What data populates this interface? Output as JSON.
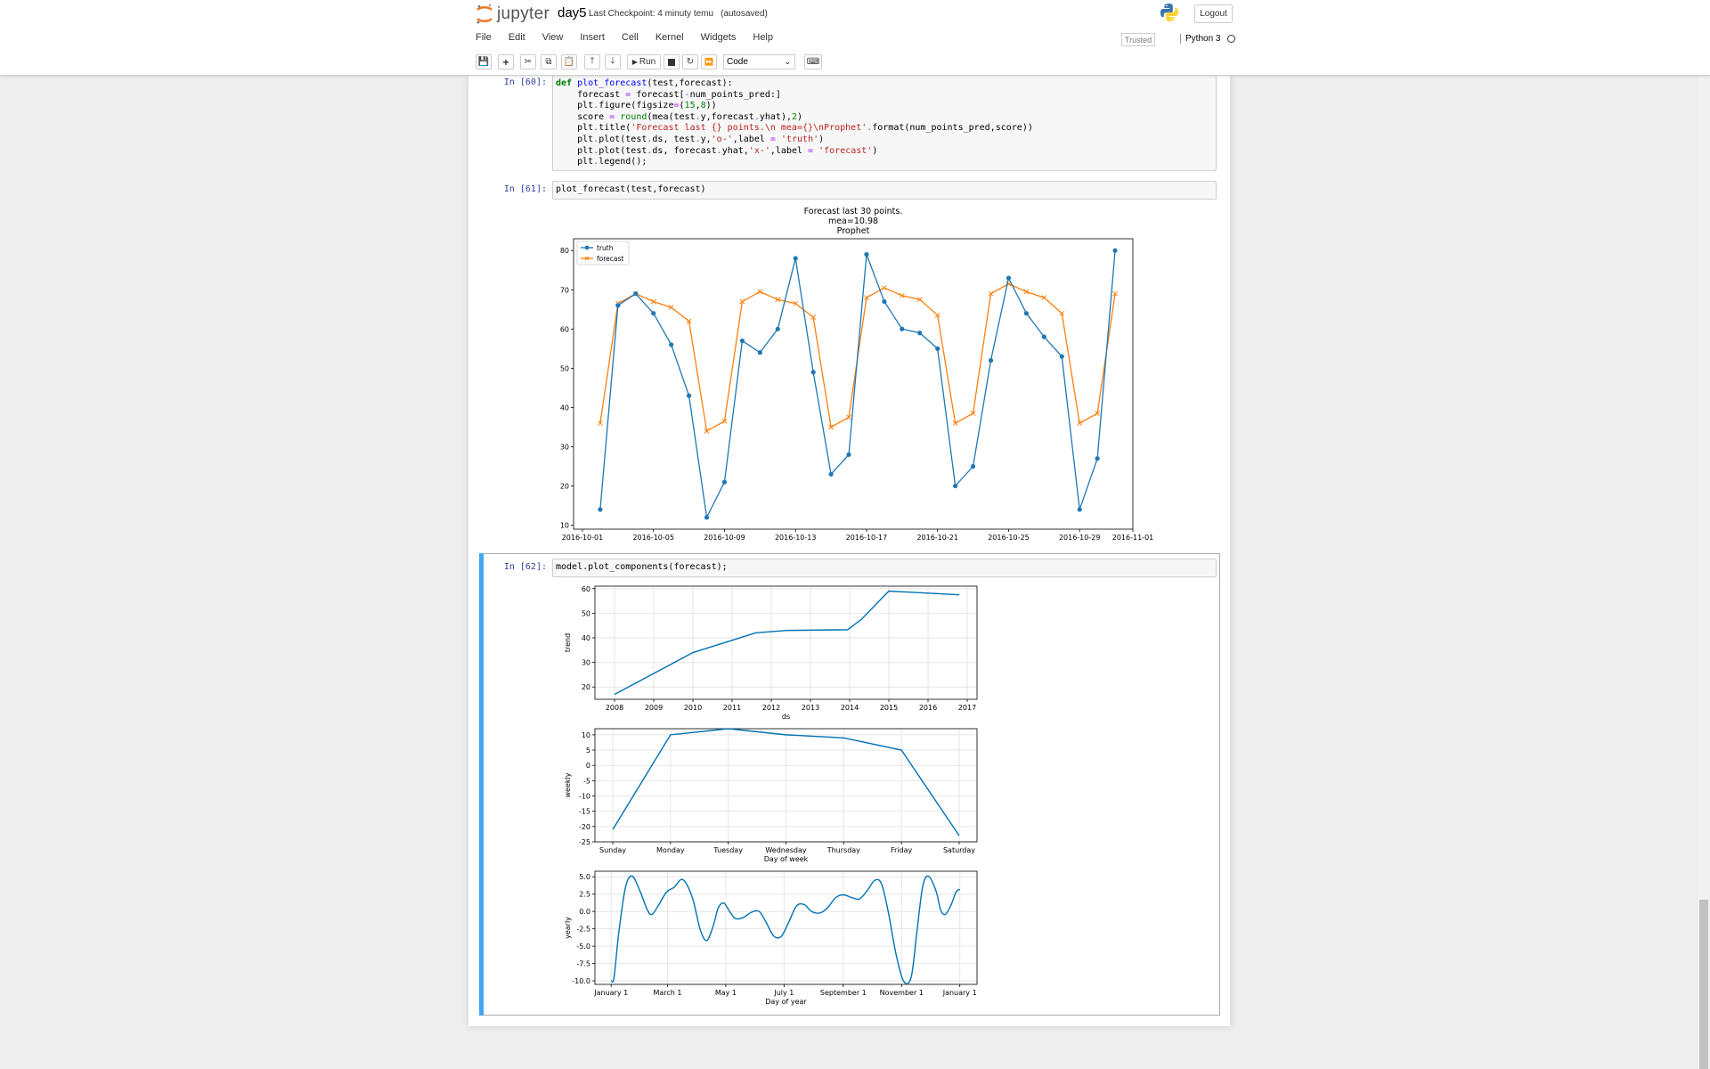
{
  "header": {
    "logo_text": "jupyter",
    "notebook_name": "day5",
    "checkpoint": "Last Checkpoint: 4 minuty temu",
    "autosave": "(autosaved)",
    "logout_label": "Logout"
  },
  "menubar": {
    "items": [
      "File",
      "Edit",
      "View",
      "Insert",
      "Cell",
      "Kernel",
      "Widgets",
      "Help"
    ]
  },
  "status": {
    "trusted": "Trusted",
    "kernel_name": "Python 3"
  },
  "toolbar": {
    "run_label": "Run",
    "cell_type": "Code"
  },
  "cells": [
    {
      "prompt": "In [60]:"
    },
    {
      "prompt": "In [61]:",
      "code": "plot_forecast(test,forecast)"
    },
    {
      "prompt": "In [62]:",
      "code": "model.plot_components(forecast);"
    }
  ],
  "colors": {
    "truth": "#1f77b4",
    "forecast": "#ff7f0e",
    "selected": "#42a5f5"
  },
  "chart_data": [
    {
      "type": "line",
      "title": [
        "Forecast last 30 points.",
        "mea=10.98",
        "Prophet"
      ],
      "x_dates": [
        "2016-10-02",
        "2016-10-03",
        "2016-10-04",
        "2016-10-05",
        "2016-10-06",
        "2016-10-07",
        "2016-10-08",
        "2016-10-09",
        "2016-10-10",
        "2016-10-11",
        "2016-10-12",
        "2016-10-13",
        "2016-10-14",
        "2016-10-15",
        "2016-10-16",
        "2016-10-17",
        "2016-10-18",
        "2016-10-19",
        "2016-10-20",
        "2016-10-21",
        "2016-10-22",
        "2016-10-23",
        "2016-10-24",
        "2016-10-25",
        "2016-10-26",
        "2016-10-27",
        "2016-10-28",
        "2016-10-29",
        "2016-10-30",
        "2016-10-31"
      ],
      "x_range_days": [
        -0.5,
        31
      ],
      "x_ticks": [
        "2016-10-01",
        "2016-10-05",
        "2016-10-09",
        "2016-10-13",
        "2016-10-17",
        "2016-10-21",
        "2016-10-25",
        "2016-10-29",
        "2016-11-01"
      ],
      "x_tick_pos": [
        0,
        4,
        8,
        12,
        16,
        20,
        24,
        28,
        31
      ],
      "ylim": [
        9,
        83
      ],
      "y_ticks": [
        10,
        20,
        30,
        40,
        50,
        60,
        70,
        80
      ],
      "series": [
        {
          "name": "truth",
          "marker": "o",
          "values": [
            14,
            66,
            69,
            64,
            56,
            43,
            12,
            21,
            57,
            54,
            60,
            78,
            49,
            23,
            28,
            79,
            67,
            60,
            59,
            55,
            20,
            25,
            52,
            73,
            64,
            58,
            53,
            14,
            27,
            80
          ]
        },
        {
          "name": "forecast",
          "marker": "x",
          "values": [
            36,
            66.5,
            69,
            67,
            65.5,
            62,
            34,
            36.5,
            67,
            69.5,
            67.5,
            66.5,
            63,
            35,
            37.5,
            68,
            70.5,
            68.5,
            67.5,
            63.5,
            36,
            38.5,
            69,
            71.5,
            69.5,
            68,
            64,
            36,
            38.5,
            69
          ]
        }
      ],
      "legend": "upper-left"
    },
    {
      "type": "line",
      "ylabel": "trend",
      "xlabel": "ds",
      "x_ticks": [
        "2008",
        "2009",
        "2010",
        "2011",
        "2012",
        "2013",
        "2014",
        "2015",
        "2016",
        "2017"
      ],
      "x_tick_values": [
        2008,
        2009,
        2010,
        2011,
        2012,
        2013,
        2014,
        2015,
        2016,
        2017
      ],
      "xlim": [
        2007.5,
        2017.25
      ],
      "ylim": [
        15,
        61
      ],
      "y_ticks": [
        20,
        30,
        40,
        50,
        60
      ],
      "x": [
        2008.0,
        2010.0,
        2011.6,
        2012.4,
        2013.95,
        2014.3,
        2015.0,
        2016.8
      ],
      "values": [
        17,
        34,
        42,
        43,
        43.3,
        47.5,
        59,
        57.5
      ]
    },
    {
      "type": "line",
      "ylabel": "weekly",
      "xlabel": "Day of week",
      "categories": [
        "Sunday",
        "Monday",
        "Tuesday",
        "Wednesday",
        "Thursday",
        "Friday",
        "Saturday"
      ],
      "ylim": [
        -25,
        12
      ],
      "y_ticks": [
        -25,
        -20,
        -15,
        -10,
        -5,
        0,
        5,
        10
      ],
      "values": [
        -21,
        10,
        12,
        10,
        9,
        5,
        -23
      ]
    },
    {
      "type": "line",
      "ylabel": "yearly",
      "xlabel": "Day of year",
      "x_ticks": [
        "January 1",
        "March 1",
        "May 1",
        "July 1",
        "September 1",
        "November 1",
        "January 1"
      ],
      "x_tick_values": [
        0,
        59,
        120,
        181,
        243,
        304,
        365
      ],
      "xlim": [
        -17,
        383
      ],
      "ylim": [
        -10.5,
        5.8
      ],
      "y_ticks": [
        -10.0,
        -7.5,
        -5.0,
        -2.5,
        0.0,
        2.5,
        5.0
      ],
      "x": [
        0,
        3,
        8,
        15,
        22,
        30,
        38,
        43,
        50,
        58,
        66,
        75,
        85,
        93,
        100,
        107,
        112,
        118,
        124,
        130,
        138,
        147,
        155,
        162,
        170,
        178,
        186,
        194,
        202,
        210,
        219,
        227,
        235,
        243,
        252,
        260,
        268,
        276,
        283,
        290,
        298,
        306,
        314,
        320,
        326,
        332,
        340,
        345,
        350,
        356,
        361,
        365
      ],
      "values": [
        -10.0,
        -9.5,
        -3.0,
        3.5,
        5.1,
        3.0,
        0.2,
        -0.4,
        1.0,
        2.8,
        3.5,
        4.6,
        2.0,
        -2.5,
        -4.2,
        -2.0,
        0.5,
        1.2,
        0.0,
        -1.0,
        -0.9,
        -0.1,
        0.0,
        -1.5,
        -3.5,
        -3.6,
        -1.5,
        0.8,
        1.0,
        0.0,
        -0.2,
        0.6,
        2.0,
        2.4,
        2.0,
        1.8,
        3.0,
        4.5,
        4.0,
        0.0,
        -6.0,
        -10.0,
        -9.5,
        -3.0,
        3.5,
        5.1,
        3.0,
        0.2,
        -0.4,
        1.0,
        2.8,
        3.2
      ]
    }
  ]
}
